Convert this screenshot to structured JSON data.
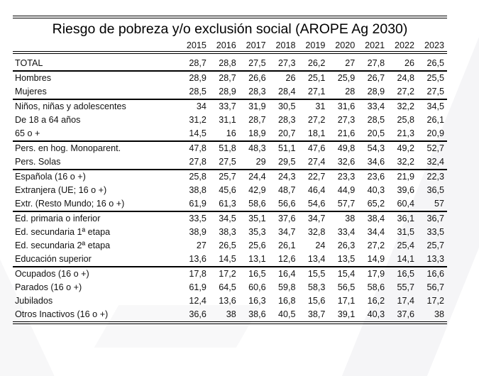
{
  "document": {
    "title": "Riesgo de pobreza y/o exclusión social (AROPE Ag 2030)",
    "years": [
      "2015",
      "2016",
      "2017",
      "2018",
      "2019",
      "2020",
      "2021",
      "2022",
      "2023"
    ],
    "sections": [
      {
        "rows": [
          {
            "label": "TOTAL",
            "values": [
              "28,7",
              "28,8",
              "27,5",
              "27,3",
              "26,2",
              "27",
              "27,8",
              "26",
              "26,5"
            ]
          }
        ]
      },
      {
        "rows": [
          {
            "label": "Hombres",
            "values": [
              "28,9",
              "28,7",
              "26,6",
              "26",
              "25,1",
              "25,9",
              "26,7",
              "24,8",
              "25,5"
            ]
          },
          {
            "label": "Mujeres",
            "values": [
              "28,5",
              "28,9",
              "28,3",
              "28,4",
              "27,1",
              "28",
              "28,9",
              "27,2",
              "27,5"
            ]
          }
        ]
      },
      {
        "rows": [
          {
            "label": "Niños, niñas y adolescentes",
            "values": [
              "34",
              "33,7",
              "31,9",
              "30,5",
              "31",
              "31,6",
              "33,4",
              "32,2",
              "34,5"
            ]
          },
          {
            "label": "De 18 a 64 años",
            "values": [
              "31,2",
              "31,1",
              "28,7",
              "28,3",
              "27,2",
              "27,3",
              "28,5",
              "25,8",
              "26,1"
            ]
          },
          {
            "label": "65 o +",
            "values": [
              "14,5",
              "16",
              "18,9",
              "20,7",
              "18,1",
              "21,6",
              "20,5",
              "21,3",
              "20,9"
            ]
          }
        ]
      },
      {
        "rows": [
          {
            "label": "Pers. en hog. Monoparent.",
            "values": [
              "47,8",
              "51,8",
              "48,3",
              "51,1",
              "47,6",
              "49,8",
              "54,3",
              "49,2",
              "52,7"
            ]
          },
          {
            "label": "Pers. Solas",
            "values": [
              "27,8",
              "27,5",
              "29",
              "29,5",
              "27,4",
              "32,6",
              "34,6",
              "32,2",
              "32,4"
            ]
          }
        ]
      },
      {
        "rows": [
          {
            "label": "Española (16 o +)",
            "values": [
              "25,8",
              "25,7",
              "24,4",
              "24,3",
              "22,7",
              "23,3",
              "23,6",
              "21,9",
              "22,3"
            ]
          },
          {
            "label": "Extranjera (UE; 16 o +)",
            "values": [
              "38,8",
              "45,6",
              "42,9",
              "48,7",
              "46,4",
              "44,9",
              "40,3",
              "39,6",
              "36,5"
            ]
          },
          {
            "label": "Extr. (Resto Mundo; 16 o +)",
            "values": [
              "61,9",
              "61,3",
              "58,6",
              "56,6",
              "54,6",
              "57,7",
              "65,2",
              "60,4",
              "57"
            ]
          }
        ]
      },
      {
        "rows": [
          {
            "label": "Ed. primaria o inferior",
            "values": [
              "33,5",
              "34,5",
              "35,1",
              "37,6",
              "34,7",
              "38",
              "38,4",
              "36,1",
              "36,7"
            ]
          },
          {
            "label": "Ed. secundaria 1ª etapa",
            "values": [
              "38,9",
              "38,3",
              "35,3",
              "34,7",
              "32,8",
              "33,4",
              "34,4",
              "31,5",
              "33,5"
            ]
          },
          {
            "label": "Ed. secundaria 2ª etapa",
            "values": [
              "27",
              "26,5",
              "25,6",
              "26,1",
              "24",
              "26,3",
              "27,2",
              "25,4",
              "25,7"
            ]
          },
          {
            "label": "Educación superior",
            "values": [
              "13,6",
              "14,5",
              "13,1",
              "12,6",
              "13,4",
              "13,5",
              "14,9",
              "14,1",
              "13,3"
            ]
          }
        ]
      },
      {
        "rows": [
          {
            "label": "Ocupados (16 o +)",
            "values": [
              "17,8",
              "17,2",
              "16,5",
              "16,4",
              "15,5",
              "15,4",
              "17,9",
              "16,5",
              "16,6"
            ]
          },
          {
            "label": "Parados (16 o +)",
            "values": [
              "61,9",
              "64,5",
              "60,6",
              "59,8",
              "58,3",
              "56,5",
              "58,6",
              "55,7",
              "56,7"
            ]
          },
          {
            "label": "Jubilados",
            "values": [
              "12,4",
              "13,6",
              "16,3",
              "16,8",
              "15,6",
              "17,1",
              "16,2",
              "17,4",
              "17,2"
            ]
          },
          {
            "label": "Otros Inactivos (16 o +)",
            "values": [
              "36,6",
              "38",
              "38,6",
              "40,5",
              "38,7",
              "39,1",
              "40,3",
              "37,6",
              "38"
            ]
          }
        ]
      }
    ]
  }
}
